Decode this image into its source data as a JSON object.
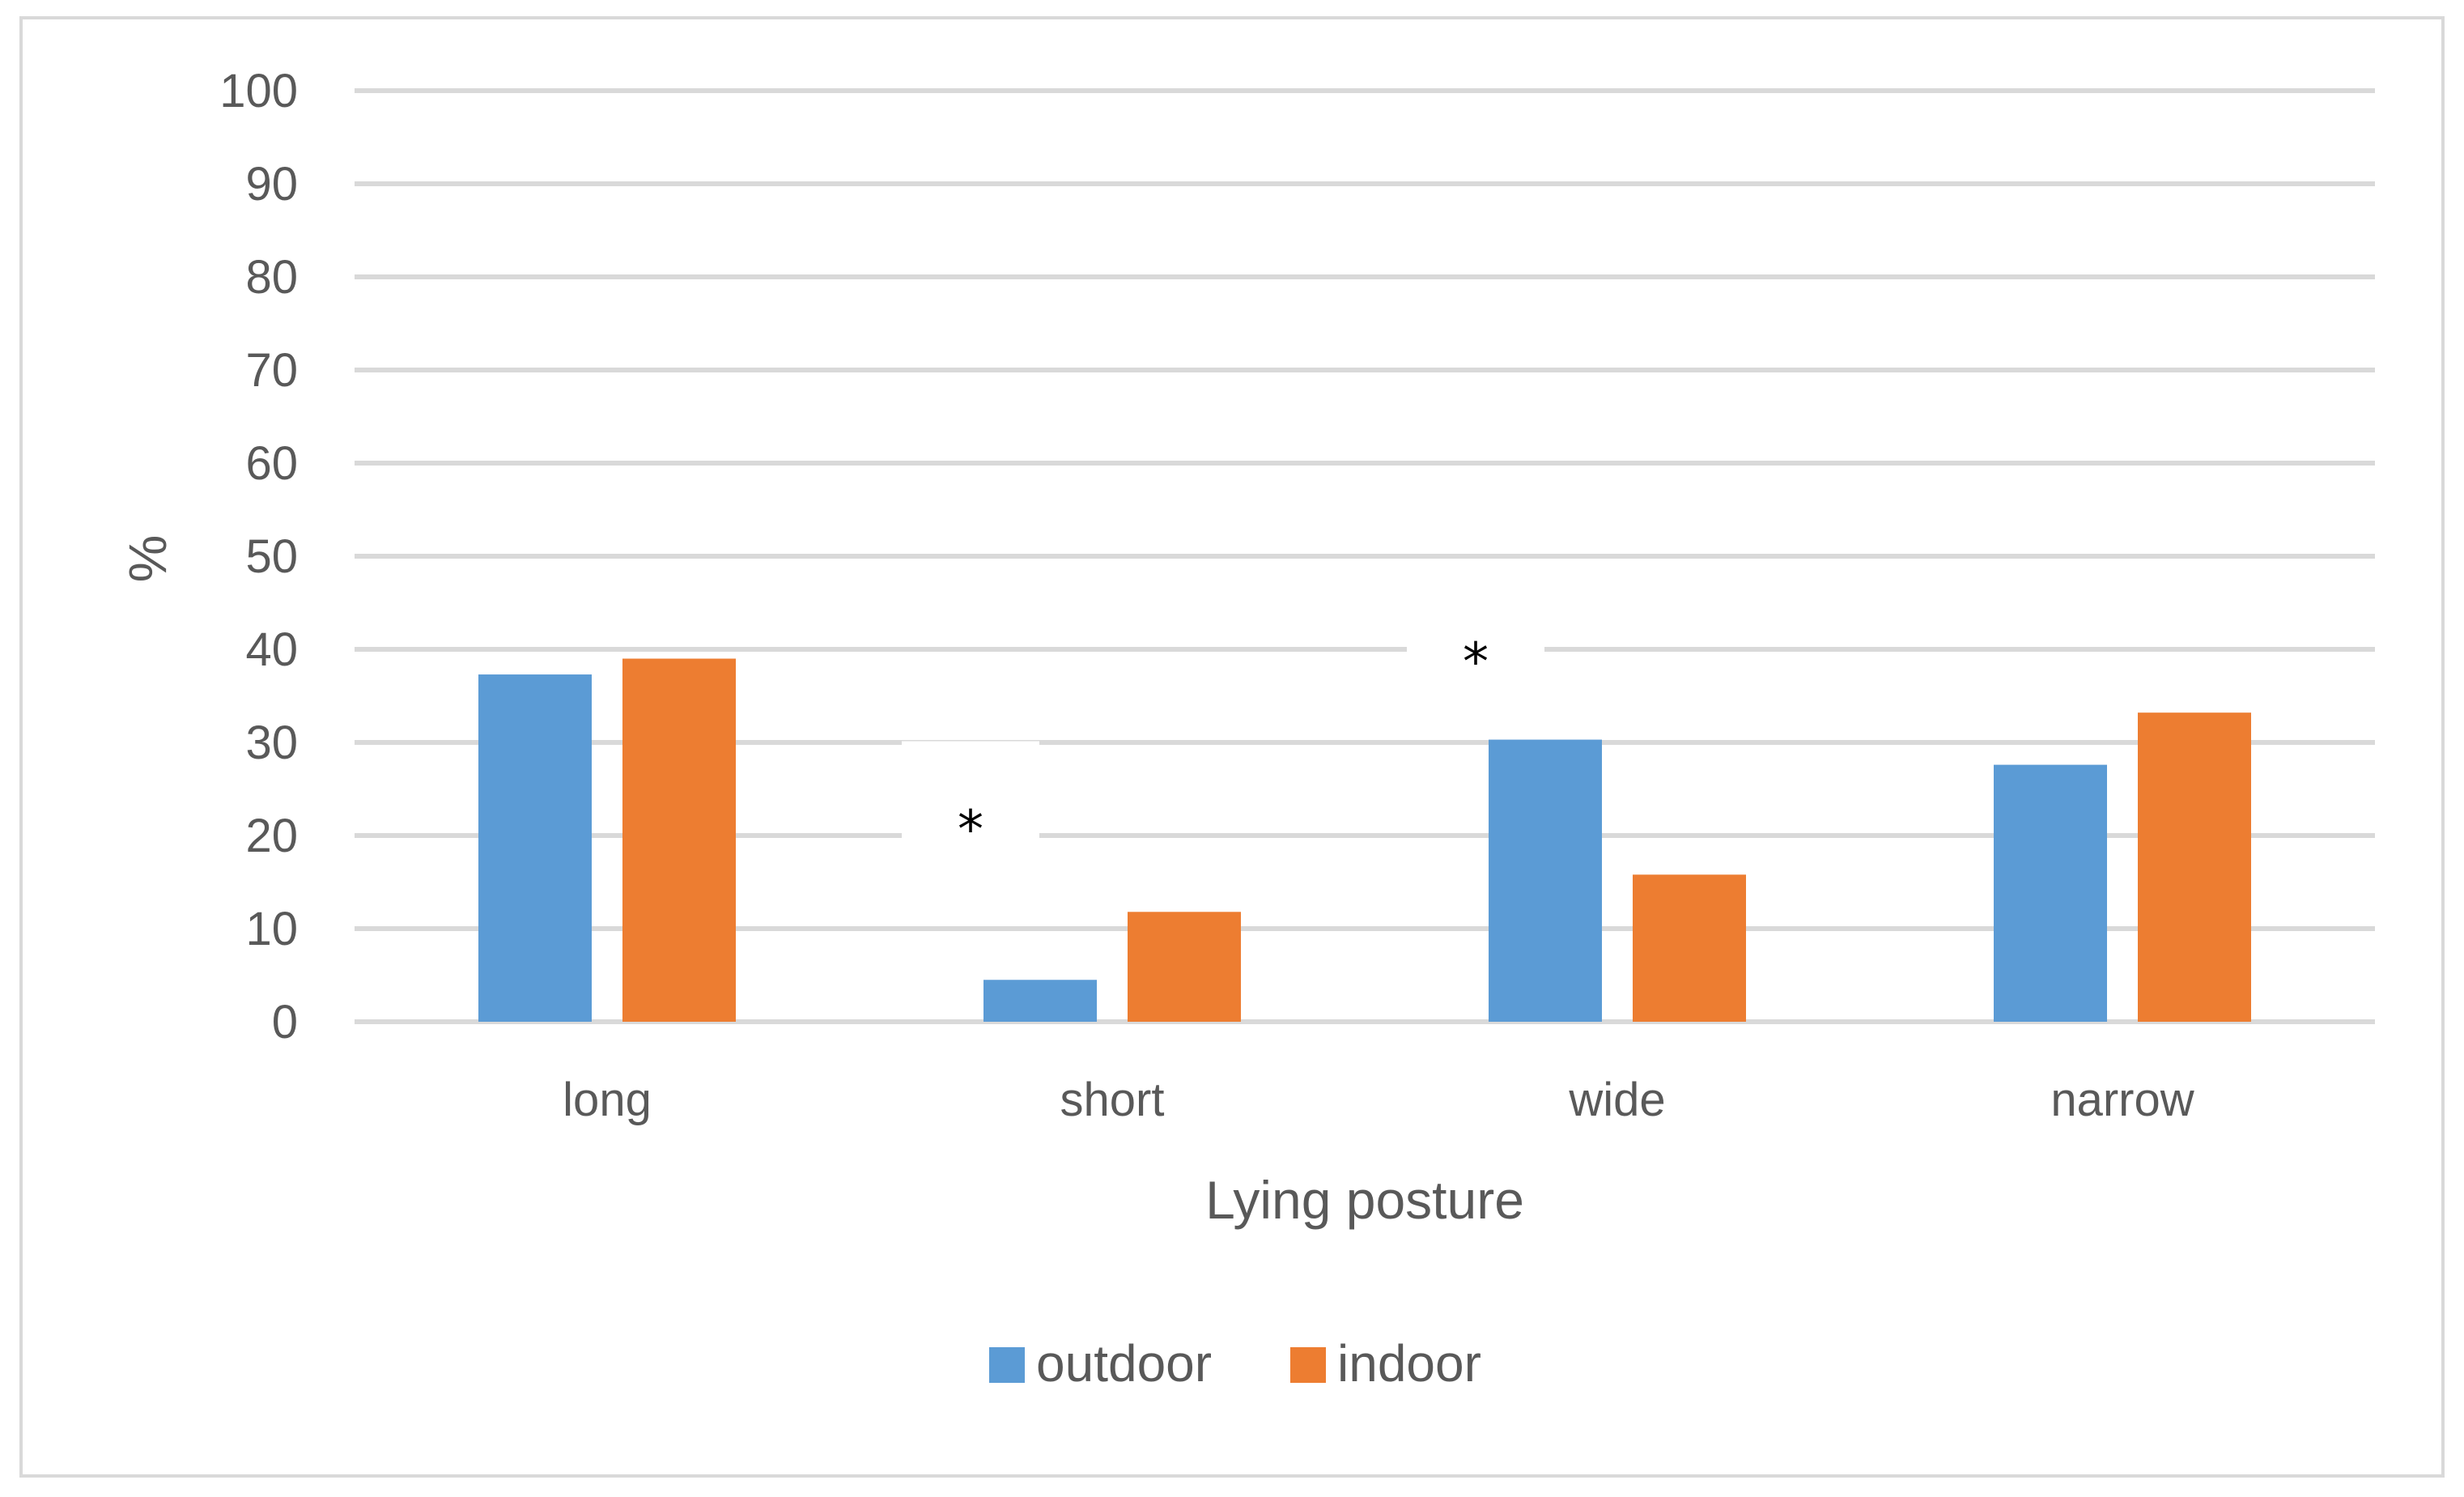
{
  "chart_data": {
    "type": "bar",
    "title": "",
    "xlabel": "Lying posture",
    "ylabel": "%",
    "ylim": [
      0,
      100
    ],
    "yticks": [
      "0",
      "10",
      "20",
      "30",
      "40",
      "50",
      "60",
      "70",
      "80",
      "90",
      "100"
    ],
    "categories": [
      "long",
      "short",
      "wide",
      "narrow"
    ],
    "series": [
      {
        "name": "outdoor",
        "color": "#5b9bd5",
        "values": [
          37.3,
          4.5,
          30.3,
          27.6
        ]
      },
      {
        "name": "indoor",
        "color": "#ed7d31",
        "values": [
          39.0,
          11.8,
          15.8,
          33.2
        ]
      }
    ],
    "grid": true,
    "gridColor": "#d9d9d9",
    "legend": "bottom",
    "annotations": [
      {
        "text": "*",
        "category": "short",
        "y": 21
      },
      {
        "text": "*",
        "category": "wide",
        "y": 39
      }
    ]
  }
}
